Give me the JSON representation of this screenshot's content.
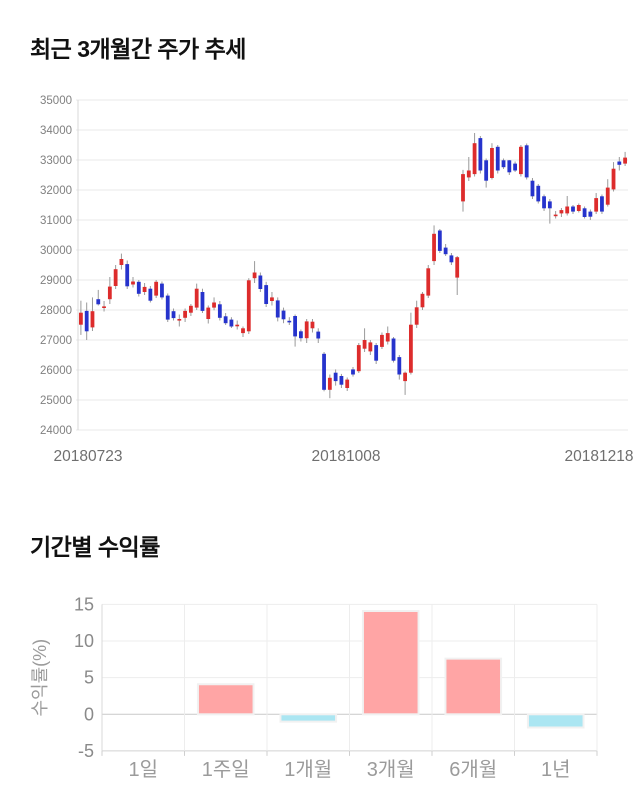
{
  "page": {
    "background": "#ffffff"
  },
  "chart_data": [
    {
      "type": "candlestick",
      "title": "최근 3개월간 주가 추세",
      "xlabel": "",
      "ylabel": "",
      "x_tick_labels": [
        "20180723",
        "20181008",
        "20181218"
      ],
      "y_ticks": [
        35000,
        34000,
        33000,
        32000,
        31000,
        30000,
        29000,
        28000,
        27000,
        26000,
        25000,
        24000
      ],
      "ylim": [
        24000,
        35000
      ],
      "grid": true,
      "up_color": "#dd2c2c",
      "down_color": "#2633cc",
      "wick_color": "#9a9a9a",
      "candles_format": [
        "open",
        "high",
        "low",
        "close"
      ],
      "candles": [
        [
          27510,
          28310,
          27170,
          27910
        ],
        [
          27970,
          28250,
          27000,
          27290
        ],
        [
          27420,
          28420,
          27300,
          27960
        ],
        [
          28360,
          28670,
          28150,
          28190
        ],
        [
          28100,
          28300,
          27950,
          28120
        ],
        [
          28360,
          29100,
          28200,
          28780
        ],
        [
          28800,
          29500,
          28700,
          29360
        ],
        [
          29500,
          29880,
          29350,
          29700
        ],
        [
          29530,
          29650,
          28700,
          28790
        ],
        [
          28850,
          29100,
          28750,
          28950
        ],
        [
          28940,
          29000,
          28450,
          28540
        ],
        [
          28600,
          28900,
          28500,
          28770
        ],
        [
          28710,
          28800,
          28250,
          28310
        ],
        [
          28480,
          29000,
          28400,
          28940
        ],
        [
          28880,
          28950,
          28350,
          28420
        ],
        [
          28480,
          28550,
          27600,
          27680
        ],
        [
          27960,
          28050,
          27650,
          27730
        ],
        [
          27700,
          27850,
          27450,
          27700
        ],
        [
          27740,
          28050,
          27600,
          27970
        ],
        [
          27910,
          28200,
          27800,
          28140
        ],
        [
          28080,
          28880,
          28000,
          28710
        ],
        [
          28600,
          28710,
          27900,
          27970
        ],
        [
          27700,
          28150,
          27550,
          28080
        ],
        [
          28080,
          28420,
          27990,
          28250
        ],
        [
          28190,
          28300,
          27650,
          27740
        ],
        [
          27790,
          27900,
          27500,
          27560
        ],
        [
          27680,
          27760,
          27400,
          27450
        ],
        [
          27510,
          27650,
          27350,
          27510
        ],
        [
          27230,
          27450,
          27100,
          27390
        ],
        [
          27290,
          29060,
          27200,
          28990
        ],
        [
          29060,
          29630,
          28900,
          29250
        ],
        [
          29150,
          29250,
          28600,
          28700
        ],
        [
          28830,
          28940,
          28100,
          28200
        ],
        [
          28300,
          28600,
          28150,
          28420
        ],
        [
          28320,
          28420,
          27620,
          27750
        ],
        [
          27980,
          28080,
          27560,
          27690
        ],
        [
          27640,
          27760,
          27500,
          27610
        ],
        [
          27800,
          27850,
          26780,
          27120
        ],
        [
          27290,
          27350,
          26950,
          27060
        ],
        [
          27060,
          27700,
          26900,
          27620
        ],
        [
          27390,
          27700,
          27250,
          27610
        ],
        [
          27280,
          27390,
          26900,
          27050
        ],
        [
          26540,
          26600,
          25290,
          25340
        ],
        [
          25340,
          25850,
          25060,
          25740
        ],
        [
          25910,
          26020,
          25480,
          25630
        ],
        [
          25800,
          25870,
          25400,
          25510
        ],
        [
          25400,
          25750,
          25300,
          25680
        ],
        [
          26020,
          26100,
          25780,
          25850
        ],
        [
          25960,
          26900,
          25900,
          26830
        ],
        [
          26710,
          27390,
          26600,
          27000
        ],
        [
          26620,
          27000,
          26500,
          26920
        ],
        [
          26830,
          26900,
          26200,
          26310
        ],
        [
          26770,
          27250,
          26700,
          27170
        ],
        [
          26950,
          27450,
          26850,
          27230
        ],
        [
          27050,
          27100,
          26250,
          26310
        ],
        [
          26430,
          26500,
          25680,
          25850
        ],
        [
          25630,
          25950,
          25170,
          25910
        ],
        [
          25910,
          27910,
          25850,
          27510
        ],
        [
          27510,
          28310,
          27400,
          28090
        ],
        [
          28090,
          28600,
          28000,
          28540
        ],
        [
          28480,
          29500,
          28400,
          29390
        ],
        [
          29630,
          30820,
          29500,
          30540
        ],
        [
          30650,
          30700,
          29900,
          29970
        ],
        [
          30080,
          30200,
          29800,
          29860
        ],
        [
          29820,
          29900,
          29500,
          29590
        ],
        [
          29080,
          29800,
          28500,
          29760
        ],
        [
          31620,
          32670,
          31280,
          32530
        ],
        [
          32420,
          33100,
          32300,
          32650
        ],
        [
          32530,
          33900,
          32450,
          33560
        ],
        [
          33730,
          33800,
          32550,
          32650
        ],
        [
          32990,
          33050,
          32080,
          32310
        ],
        [
          32400,
          33560,
          32350,
          33400
        ],
        [
          33440,
          33500,
          32550,
          32650
        ],
        [
          32990,
          33050,
          32700,
          32760
        ],
        [
          32990,
          33000,
          32500,
          32590
        ],
        [
          32880,
          32950,
          32600,
          32650
        ],
        [
          32530,
          33500,
          32450,
          33440
        ],
        [
          33490,
          33550,
          32350,
          32420
        ],
        [
          32310,
          32400,
          31700,
          31790
        ],
        [
          32140,
          32200,
          31550,
          31620
        ],
        [
          31790,
          31850,
          31300,
          31390
        ],
        [
          31620,
          31700,
          30880,
          31390
        ],
        [
          31160,
          31300,
          31050,
          31180
        ],
        [
          31220,
          31400,
          31100,
          31330
        ],
        [
          31220,
          31800,
          31150,
          31450
        ],
        [
          31450,
          31500,
          31200,
          31280
        ],
        [
          31300,
          31550,
          31250,
          31500
        ],
        [
          31390,
          31450,
          31050,
          31100
        ],
        [
          31280,
          31350,
          31000,
          31110
        ],
        [
          31280,
          31900,
          31200,
          31730
        ],
        [
          31790,
          31850,
          31200,
          31280
        ],
        [
          31510,
          32360,
          31450,
          32080
        ],
        [
          32020,
          32930,
          31950,
          32710
        ],
        [
          32950,
          33100,
          32650,
          32840
        ],
        [
          32880,
          33270,
          32800,
          33080
        ]
      ]
    },
    {
      "type": "bar",
      "title": "기간별 수익률",
      "xlabel": "",
      "ylabel": "수익률(%)",
      "categories": [
        "1일",
        "1주일",
        "1개월",
        "3개월",
        "6개월",
        "1년"
      ],
      "values": [
        0,
        4.1,
        -1.0,
        14.1,
        7.6,
        -1.8
      ],
      "y_ticks": [
        15,
        10,
        5,
        0,
        -5
      ],
      "ylim": [
        -5,
        15
      ],
      "grid": true,
      "positive_color": "#ffa5a5",
      "negative_color": "#abe6f2"
    }
  ]
}
